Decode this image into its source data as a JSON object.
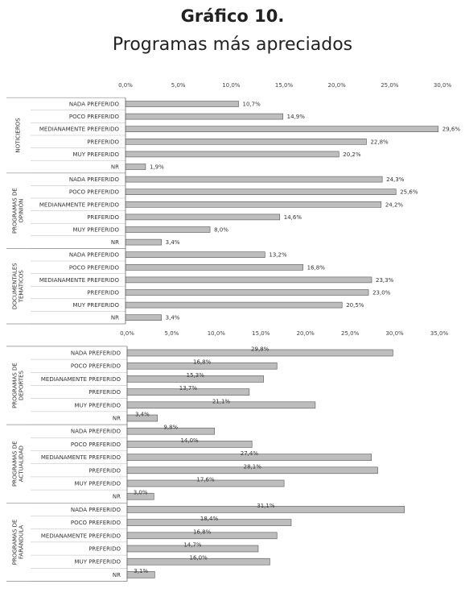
{
  "title": "Gráfico 10.",
  "subtitle": "Programas más apreciados",
  "colors": {
    "bar_fill": "#bdbdbd",
    "bar_stroke": "#555555"
  },
  "chart_data": [
    {
      "type": "bar",
      "orientation": "horizontal",
      "ticks": [
        "0,0%",
        "5,0%",
        "10,0%",
        "15,0%",
        "20,0%",
        "25,0%",
        "30,0%"
      ],
      "xlim": [
        0,
        30
      ],
      "label_position": "right-of-bar",
      "groups": [
        {
          "name": "NOTICIEROS",
          "categories": [
            "NADA PREFERIDO",
            "POCO PREFERIDO",
            "MEDIANAMENTE PREFERIDO",
            "PREFERIDO",
            "MUY PREFERIDO",
            "NR"
          ],
          "values": [
            10.7,
            14.9,
            29.6,
            22.8,
            20.2,
            1.9
          ],
          "labels": [
            "10,7%",
            "14,9%",
            "29,6%",
            "22,8%",
            "20,2%",
            "1,9%"
          ]
        },
        {
          "name": "PROGRAMAS DE OPINIÓN",
          "categories": [
            "NADA PREFERIDO",
            "POCO PREFERIDO",
            "MEDIANAMENTE PREFERIDO",
            "PREFERIDO",
            "MUY PREFERIDO",
            "NR"
          ],
          "values": [
            24.3,
            25.6,
            24.2,
            14.6,
            8.0,
            3.4
          ],
          "labels": [
            "24,3%",
            "25,6%",
            "24,2%",
            "14,6%",
            "8,0%",
            "3,4%"
          ]
        },
        {
          "name": "DOCUMENTALES TEMÁTICOS",
          "categories": [
            "NADA PREFERIDO",
            "POCO PREFERIDO",
            "MEDIANAMENTE PREFERIDO",
            "PREFERIDO",
            "MUY PREFERIDO",
            "NR"
          ],
          "values": [
            13.2,
            16.8,
            23.3,
            23.0,
            20.5,
            3.4
          ],
          "labels": [
            "13,2%",
            "16,8%",
            "23,3%",
            "23,0%",
            "20,5%",
            "3,4%"
          ]
        }
      ]
    },
    {
      "type": "bar",
      "orientation": "horizontal",
      "ticks": [
        "0,0%",
        "5,0%",
        "10,0%",
        "15,0%",
        "20,0%",
        "25,0%",
        "30,0%",
        "35,0%"
      ],
      "xlim": [
        0,
        35
      ],
      "label_position": "on-bar",
      "groups": [
        {
          "name": "PROGRAMAS DE DEPORTES",
          "categories": [
            "NADA PREFERIDO",
            "POCO PREFERIDO",
            "MEDIANAMENTE PREFERIDO",
            "PREFERIDO",
            "MUY PREFERIDO",
            "NR"
          ],
          "values": [
            29.8,
            16.8,
            15.3,
            13.7,
            21.1,
            3.4
          ],
          "labels": [
            "29,8%",
            "16,8%",
            "15,3%",
            "13,7%",
            "21,1%",
            "3,4%"
          ]
        },
        {
          "name": "PROGRAMAS DE ACTUALIDAD",
          "categories": [
            "NADA PREFERIDO",
            "POCO PREFERIDO",
            "MEDIANAMENTE PREFERIDO",
            "PREFERIDO",
            "MUY PREFERIDO",
            "NR"
          ],
          "values": [
            9.8,
            14.0,
            27.4,
            28.1,
            17.6,
            3.0
          ],
          "labels": [
            "9,8%",
            "14,0%",
            "27,4%",
            "28,1%",
            "17,6%",
            "3,0%"
          ]
        },
        {
          "name": "PROGRAMAS DE FARÁNDULA",
          "categories": [
            "NADA PREFERIDO",
            "POCO PREFERIDO",
            "MEDIANAMENTE PREFERIDO",
            "PREFERIDO",
            "MUY PREFERIDO",
            "NR"
          ],
          "values": [
            31.1,
            18.4,
            16.8,
            14.7,
            16.0,
            3.1
          ],
          "labels": [
            "31,1%",
            "18,4%",
            "16,8%",
            "14,7%",
            "16,0%",
            "3,1%"
          ]
        }
      ]
    }
  ]
}
